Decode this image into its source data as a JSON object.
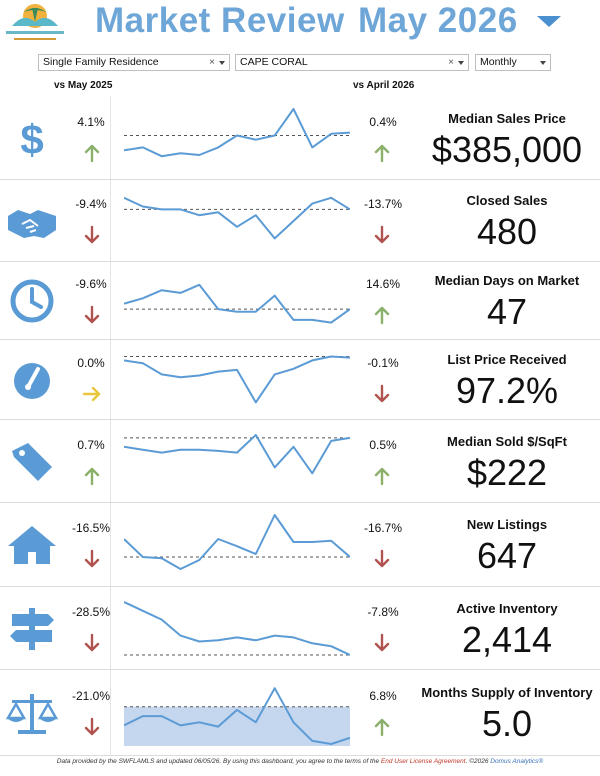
{
  "header": {
    "title": "Market Review",
    "month": "May 2026"
  },
  "filters": {
    "property_type": "Single Family Residence",
    "city": "CAPE CORAL",
    "period": "Monthly",
    "clear_symbol": "×"
  },
  "columns": {
    "left": "vs May 2025",
    "right": "vs April 2026"
  },
  "colors": {
    "accent": "#5b9bd5",
    "title": "#6ea6d8",
    "up": "#8ab06a",
    "down": "#b0524f",
    "flat": "#e8c83a"
  },
  "metrics": [
    {
      "name": "Median Sales Price",
      "value": "$385,000",
      "icon": "dollar-icon",
      "yoy": "4.1%",
      "yoy_dir": "up",
      "mom": "0.4%",
      "mom_dir": "up",
      "spark": [
        0.3,
        0.35,
        0.2,
        0.25,
        0.22,
        0.35,
        0.55,
        0.48,
        0.55,
        1.0,
        0.35,
        0.58,
        0.6
      ],
      "baseline": 0.55,
      "shaded": false
    },
    {
      "name": "Closed Sales",
      "value": "480",
      "icon": "handshake-icon",
      "yoy": "-9.4%",
      "yoy_dir": "down",
      "mom": "-13.7%",
      "mom_dir": "down",
      "spark": [
        0.9,
        0.75,
        0.7,
        0.7,
        0.6,
        0.65,
        0.4,
        0.6,
        0.2,
        0.5,
        0.8,
        0.9,
        0.7
      ],
      "baseline": 0.7,
      "shaded": false
    },
    {
      "name": "Median Days on Market",
      "value": "47",
      "icon": "clock-icon",
      "yoy": "-9.6%",
      "yoy_dir": "down",
      "mom": "14.6%",
      "mom_dir": "up",
      "spark": [
        0.45,
        0.55,
        0.7,
        0.65,
        0.8,
        0.35,
        0.3,
        0.3,
        0.6,
        0.15,
        0.15,
        0.1,
        0.35
      ],
      "baseline": 0.35,
      "shaded": false
    },
    {
      "name": "List Price Received",
      "value": "97.2%",
      "icon": "gauge-icon",
      "yoy": "0.0%",
      "yoy_dir": "flat",
      "mom": "-0.1%",
      "mom_dir": "down",
      "spark": [
        0.85,
        0.8,
        0.6,
        0.55,
        0.58,
        0.65,
        0.68,
        0.1,
        0.6,
        0.7,
        0.85,
        0.92,
        0.9
      ],
      "baseline": 0.92,
      "shaded": false
    },
    {
      "name": "Median Sold $/SqFt",
      "value": "$222",
      "icon": "tag-icon",
      "yoy": "0.7%",
      "yoy_dir": "up",
      "mom": "0.5%",
      "mom_dir": "up",
      "spark": [
        0.75,
        0.7,
        0.65,
        0.7,
        0.7,
        0.68,
        0.65,
        0.95,
        0.4,
        0.75,
        0.3,
        0.85,
        0.9
      ],
      "baseline": 0.9,
      "shaded": false
    },
    {
      "name": "New Listings",
      "value": "647",
      "icon": "house-icon",
      "yoy": "-16.5%",
      "yoy_dir": "down",
      "mom": "-16.7%",
      "mom_dir": "down",
      "spark": [
        0.6,
        0.3,
        0.28,
        0.1,
        0.25,
        0.6,
        0.48,
        0.35,
        1.0,
        0.55,
        0.55,
        0.57,
        0.3
      ],
      "baseline": 0.3,
      "shaded": false
    },
    {
      "name": "Active Inventory",
      "value": "2,414",
      "icon": "signpost-icon",
      "yoy": "-28.5%",
      "yoy_dir": "down",
      "mom": "-7.8%",
      "mom_dir": "down",
      "spark": [
        0.95,
        0.8,
        0.65,
        0.38,
        0.28,
        0.3,
        0.35,
        0.3,
        0.38,
        0.35,
        0.25,
        0.2,
        0.05
      ],
      "baseline": 0.05,
      "shaded": false
    },
    {
      "name": "Months Supply of Inventory",
      "value": "5.0",
      "icon": "scale-icon",
      "yoy": "-21.0%",
      "yoy_dir": "down",
      "mom": "6.8%",
      "mom_dir": "up",
      "spark": [
        0.3,
        0.45,
        0.45,
        0.3,
        0.35,
        0.28,
        0.55,
        0.35,
        0.9,
        0.35,
        0.05,
        0.0,
        0.1
      ],
      "baseline": 0.6,
      "shaded": true
    }
  ],
  "footer": {
    "text": "Data provided by the SWFLAMLS and updated 06/05/26.  By using this dashboard, you agree to the terms of the ",
    "link": "End User License Agreement",
    "copyright": ".  ©2026 ",
    "brand": "Domus Analytics®"
  }
}
